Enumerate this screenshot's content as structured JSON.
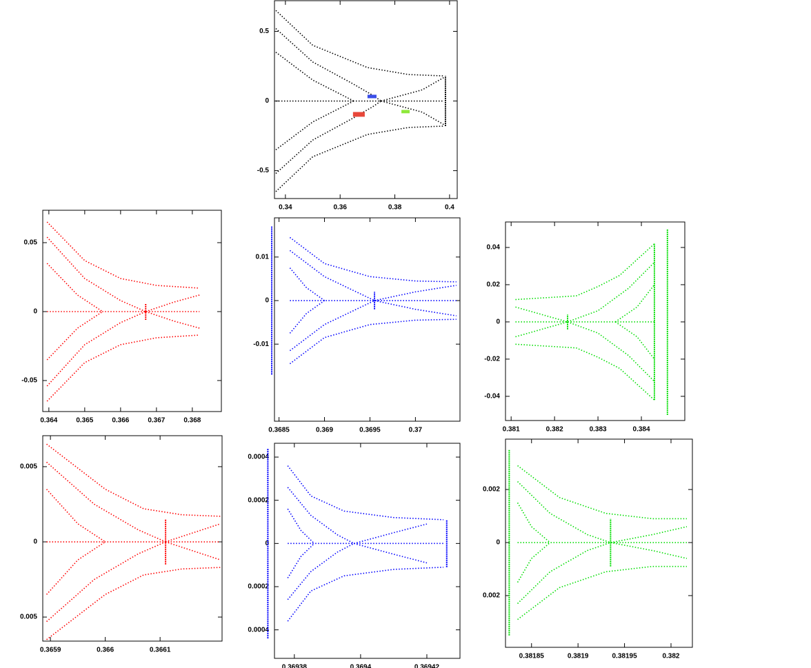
{
  "chart_data": [
    {
      "type": "scatter",
      "color": "#000000",
      "xlim": [
        0.336,
        0.4028
      ],
      "ylim": [
        -0.7,
        0.72
      ],
      "xticks": [
        0.34,
        0.36,
        0.38,
        0.4
      ],
      "yticks": [
        -0.5,
        0,
        0.5
      ],
      "series": [
        {
          "x": [
            0.3365,
            0.35,
            0.37,
            0.385,
            0.398
          ],
          "values": [
            0.65,
            0.4,
            0.24,
            0.19,
            0.18
          ]
        },
        {
          "x": [
            0.3365,
            0.35,
            0.37,
            0.385,
            0.398
          ],
          "values": [
            -0.65,
            -0.4,
            -0.24,
            -0.19,
            -0.18
          ]
        },
        {
          "x": [
            0.3365,
            0.35,
            0.365,
            0.372,
            0.375
          ],
          "values": [
            0.52,
            0.28,
            0.12,
            0.04,
            0
          ]
        },
        {
          "x": [
            0.3365,
            0.35,
            0.365,
            0.372,
            0.375
          ],
          "values": [
            -0.52,
            -0.28,
            -0.12,
            -0.04,
            0
          ]
        },
        {
          "x": [
            0.3365,
            0.35,
            0.36,
            0.365
          ],
          "values": [
            0.35,
            0.15,
            0.05,
            0
          ]
        },
        {
          "x": [
            0.3365,
            0.35,
            0.36,
            0.365
          ],
          "values": [
            -0.35,
            -0.15,
            -0.05,
            0
          ]
        },
        {
          "x": [
            0.375,
            0.39,
            0.398
          ],
          "values": [
            0,
            0.08,
            0.17
          ]
        },
        {
          "x": [
            0.375,
            0.39,
            0.398
          ],
          "values": [
            0,
            -0.08,
            -0.17
          ]
        },
        {
          "x": [
            0.3365,
            0.398
          ],
          "values": [
            0,
            0
          ]
        },
        {
          "x": [
            0.3985,
            0.3985
          ],
          "values": [
            -0.18,
            0.18
          ]
        }
      ],
      "regions": [
        {
          "x": [
            0.3647,
            0.369
          ],
          "y": [
            -0.113,
            -0.079
          ],
          "color": "#e8473a"
        },
        {
          "x": [
            0.37,
            0.3733
          ],
          "y": [
            0.02,
            0.045
          ],
          "color": "#3a4ee8"
        },
        {
          "x": [
            0.3824,
            0.3854
          ],
          "y": [
            -0.088,
            -0.064
          ],
          "color": "#8ee83a"
        }
      ]
    },
    {
      "type": "scatter",
      "color": "#ff0000",
      "xlim": [
        0.36383,
        0.36881
      ],
      "ylim": [
        -0.0725,
        0.0735
      ],
      "xticks": [
        0.364,
        0.365,
        0.366,
        0.367,
        0.368
      ],
      "yticks": [
        -0.05,
        0,
        0.05
      ],
      "series": [
        {
          "x": [
            0.36395,
            0.365,
            0.366,
            0.367,
            0.3682
          ],
          "values": [
            0.065,
            0.037,
            0.024,
            0.019,
            0.017
          ]
        },
        {
          "x": [
            0.36395,
            0.365,
            0.366,
            0.367,
            0.3682
          ],
          "values": [
            -0.065,
            -0.037,
            -0.024,
            -0.019,
            -0.017
          ]
        },
        {
          "x": [
            0.36395,
            0.365,
            0.366,
            0.3667
          ],
          "values": [
            0.054,
            0.024,
            0.008,
            0
          ]
        },
        {
          "x": [
            0.36395,
            0.365,
            0.366,
            0.3667
          ],
          "values": [
            -0.054,
            -0.024,
            -0.008,
            0
          ]
        },
        {
          "x": [
            0.36395,
            0.3648,
            0.3655
          ],
          "values": [
            0.035,
            0.012,
            0
          ]
        },
        {
          "x": [
            0.36395,
            0.3648,
            0.3655
          ],
          "values": [
            -0.035,
            -0.012,
            0
          ]
        },
        {
          "x": [
            0.3667,
            0.3675,
            0.3682
          ],
          "values": [
            0,
            0.007,
            0.012
          ]
        },
        {
          "x": [
            0.3667,
            0.3675,
            0.3682
          ],
          "values": [
            0,
            -0.007,
            -0.012
          ]
        },
        {
          "x": [
            0.36395,
            0.3682
          ],
          "values": [
            0,
            0
          ]
        },
        {
          "x": [
            0.3667,
            0.3667
          ],
          "values": [
            -0.006,
            0.006
          ]
        }
      ]
    },
    {
      "type": "scatter",
      "color": "#0000ff",
      "xlim": [
        0.36845,
        0.37049
      ],
      "ylim": [
        -0.0277,
        0.019
      ],
      "xticks": [
        0.3685,
        0.369,
        0.3695,
        0.37
      ],
      "yticks": [
        -0.01,
        0,
        0.01
      ],
      "series": [
        {
          "x": [
            0.36862,
            0.369,
            0.3695,
            0.37,
            0.37045
          ],
          "values": [
            0.0145,
            0.0085,
            0.0055,
            0.0045,
            0.0043
          ]
        },
        {
          "x": [
            0.36862,
            0.369,
            0.3695,
            0.37,
            0.37045
          ],
          "values": [
            -0.0145,
            -0.0085,
            -0.0055,
            -0.0045,
            -0.0043
          ]
        },
        {
          "x": [
            0.36862,
            0.369,
            0.3694,
            0.36955
          ],
          "values": [
            0.0115,
            0.0055,
            0.0015,
            0
          ]
        },
        {
          "x": [
            0.36862,
            0.369,
            0.3694,
            0.36955
          ],
          "values": [
            -0.0115,
            -0.0055,
            -0.0015,
            0
          ]
        },
        {
          "x": [
            0.36862,
            0.3688,
            0.369
          ],
          "values": [
            0.0075,
            0.003,
            0
          ]
        },
        {
          "x": [
            0.36862,
            0.3688,
            0.369
          ],
          "values": [
            -0.0075,
            -0.003,
            0
          ]
        },
        {
          "x": [
            0.36955,
            0.37,
            0.37045
          ],
          "values": [
            0,
            0.002,
            0.0035
          ]
        },
        {
          "x": [
            0.36955,
            0.37,
            0.37045
          ],
          "values": [
            0,
            -0.002,
            -0.0035
          ]
        },
        {
          "x": [
            0.36862,
            0.37045
          ],
          "values": [
            0,
            0
          ]
        },
        {
          "x": [
            0.36955,
            0.36955
          ],
          "values": [
            -0.002,
            0.002
          ]
        },
        {
          "x": [
            0.36842,
            0.36842
          ],
          "values": [
            -0.017,
            0.017
          ]
        }
      ]
    },
    {
      "type": "scatter",
      "color": "#00dd00",
      "xlim": [
        0.38087,
        0.385
      ],
      "ylim": [
        -0.053,
        0.0537
      ],
      "xticks": [
        0.381,
        0.382,
        0.383,
        0.384
      ],
      "yticks": [
        -0.04,
        -0.02,
        0,
        0.02,
        0.04
      ],
      "series": [
        {
          "x": [
            0.3811,
            0.3825,
            0.383,
            0.3835,
            0.3843
          ],
          "values": [
            0.012,
            0.014,
            0.019,
            0.025,
            0.042
          ]
        },
        {
          "x": [
            0.3811,
            0.3825,
            0.383,
            0.3835,
            0.3843
          ],
          "values": [
            -0.012,
            -0.014,
            -0.019,
            -0.025,
            -0.042
          ]
        },
        {
          "x": [
            0.3823,
            0.383,
            0.3837,
            0.3843
          ],
          "values": [
            0,
            0.006,
            0.018,
            0.032
          ]
        },
        {
          "x": [
            0.3823,
            0.383,
            0.3837,
            0.3843
          ],
          "values": [
            0,
            -0.006,
            -0.018,
            -0.032
          ]
        },
        {
          "x": [
            0.3834,
            0.3839,
            0.3843
          ],
          "values": [
            0,
            0.008,
            0.02
          ]
        },
        {
          "x": [
            0.3834,
            0.3839,
            0.3843
          ],
          "values": [
            0,
            -0.008,
            -0.02
          ]
        },
        {
          "x": [
            0.3811,
            0.3817,
            0.3823
          ],
          "values": [
            0.008,
            0.004,
            0
          ]
        },
        {
          "x": [
            0.3811,
            0.3817,
            0.3823
          ],
          "values": [
            -0.008,
            -0.004,
            0
          ]
        },
        {
          "x": [
            0.3811,
            0.3843
          ],
          "values": [
            0,
            0
          ]
        },
        {
          "x": [
            0.3823,
            0.3823
          ],
          "values": [
            -0.004,
            0.004
          ]
        },
        {
          "x": [
            0.3843,
            0.3843
          ],
          "values": [
            -0.042,
            0.042
          ]
        },
        {
          "x": [
            0.3846,
            0.3846
          ],
          "values": [
            -0.05,
            0.05
          ]
        }
      ]
    },
    {
      "type": "scatter",
      "color": "#ff0000",
      "xlim": [
        0.365886,
        0.366213
      ],
      "ylim": [
        -0.0066,
        0.00706
      ],
      "xticks": [
        0.3659,
        0.366,
        0.3661
      ],
      "yticks": [
        {
          "value": -0.005,
          "label": "0.005"
        },
        0,
        0.005
      ],
      "series": [
        {
          "x": [
            0.365893,
            0.366,
            0.36607,
            0.36614,
            0.36621
          ],
          "values": [
            0.0065,
            0.0035,
            0.0022,
            0.0018,
            0.0017
          ]
        },
        {
          "x": [
            0.365893,
            0.366,
            0.36607,
            0.36614,
            0.36621
          ],
          "values": [
            -0.0065,
            -0.0035,
            -0.0022,
            -0.0018,
            -0.0017
          ]
        },
        {
          "x": [
            0.365893,
            0.36598,
            0.36606,
            0.36611
          ],
          "values": [
            0.0053,
            0.0025,
            0.0008,
            0
          ]
        },
        {
          "x": [
            0.365893,
            0.36598,
            0.36606,
            0.36611
          ],
          "values": [
            -0.0053,
            -0.0025,
            -0.0008,
            0
          ]
        },
        {
          "x": [
            0.365893,
            0.36595,
            0.366
          ],
          "values": [
            0.0035,
            0.0012,
            0
          ]
        },
        {
          "x": [
            0.365893,
            0.36595,
            0.366
          ],
          "values": [
            -0.0035,
            -0.0012,
            0
          ]
        },
        {
          "x": [
            0.36611,
            0.36616,
            0.36621
          ],
          "values": [
            0,
            0.0006,
            0.0012
          ]
        },
        {
          "x": [
            0.36611,
            0.36616,
            0.36621
          ],
          "values": [
            0,
            -0.0006,
            -0.0012
          ]
        },
        {
          "x": [
            0.365893,
            0.36621
          ],
          "values": [
            0,
            0
          ]
        },
        {
          "x": [
            0.36611,
            0.36611
          ],
          "values": [
            -0.0015,
            0.0015
          ]
        }
      ]
    },
    {
      "type": "scatter",
      "color": "#0000ff",
      "xlim": [
        0.369374,
        0.36943
      ],
      "ylim": [
        -0.000532,
        0.000464
      ],
      "xticks": [
        0.36938,
        0.3694,
        0.36942
      ],
      "yticks": [
        {
          "value": -0.0004,
          "label": "0.0004"
        },
        {
          "value": -0.0002,
          "label": "0.0002"
        },
        0,
        0.0002,
        0.0004
      ],
      "series": [
        {
          "x": [
            0.369378,
            0.369385,
            0.369395,
            0.36941,
            0.369425
          ],
          "values": [
            0.00036,
            0.00022,
            0.00015,
            0.00012,
            0.00011
          ]
        },
        {
          "x": [
            0.369378,
            0.369385,
            0.369395,
            0.36941,
            0.369425
          ],
          "values": [
            -0.00036,
            -0.00022,
            -0.00015,
            -0.00012,
            -0.00011
          ]
        },
        {
          "x": [
            0.369378,
            0.369385,
            0.369393,
            0.369398
          ],
          "values": [
            0.00026,
            0.00013,
            4e-05,
            0
          ]
        },
        {
          "x": [
            0.369378,
            0.369385,
            0.369393,
            0.369398
          ],
          "values": [
            -0.00026,
            -0.00013,
            -4e-05,
            0
          ]
        },
        {
          "x": [
            0.369378,
            0.369382,
            0.369386
          ],
          "values": [
            0.00016,
            6e-05,
            0
          ]
        },
        {
          "x": [
            0.369378,
            0.369382,
            0.369386
          ],
          "values": [
            -0.00016,
            -6e-05,
            0
          ]
        },
        {
          "x": [
            0.369398,
            0.36941,
            0.36942
          ],
          "values": [
            0,
            5e-05,
            9e-05
          ]
        },
        {
          "x": [
            0.369398,
            0.36941,
            0.36942
          ],
          "values": [
            0,
            -5e-05,
            -9e-05
          ]
        },
        {
          "x": [
            0.369378,
            0.369425
          ],
          "values": [
            0,
            0
          ]
        },
        {
          "x": [
            0.369372,
            0.369372
          ],
          "values": [
            -0.00044,
            0.00044
          ]
        },
        {
          "x": [
            0.369426,
            0.369426
          ],
          "values": [
            -0.00011,
            0.00011
          ]
        }
      ]
    },
    {
      "type": "scatter",
      "color": "#00dd00",
      "xlim": [
        0.381822,
        0.382023
      ],
      "ylim": [
        -0.00395,
        0.0039
      ],
      "xticks": [
        0.38185,
        0.3819,
        0.38195,
        0.382
      ],
      "yticks": [
        {
          "value": -0.002,
          "label": "0.002"
        },
        0,
        0.002
      ],
      "series": [
        {
          "x": [
            0.381835,
            0.38188,
            0.38193,
            0.38198,
            0.382017
          ],
          "values": [
            0.0029,
            0.0017,
            0.0011,
            0.0009,
            0.0009
          ]
        },
        {
          "x": [
            0.381835,
            0.38188,
            0.38193,
            0.38198,
            0.382017
          ],
          "values": [
            -0.0029,
            -0.0017,
            -0.0011,
            -0.0009,
            -0.0009
          ]
        },
        {
          "x": [
            0.381835,
            0.38187,
            0.38191,
            0.381935
          ],
          "values": [
            0.0023,
            0.0011,
            0.0003,
            0
          ]
        },
        {
          "x": [
            0.381835,
            0.38187,
            0.38191,
            0.381935
          ],
          "values": [
            -0.0023,
            -0.0011,
            -0.0003,
            0
          ]
        },
        {
          "x": [
            0.381835,
            0.38185,
            0.38187
          ],
          "values": [
            0.0015,
            0.0006,
            0
          ]
        },
        {
          "x": [
            0.381835,
            0.38185,
            0.38187
          ],
          "values": [
            -0.0015,
            -0.0006,
            0
          ]
        },
        {
          "x": [
            0.381935,
            0.38198,
            0.382017
          ],
          "values": [
            0,
            0.0003,
            0.0006
          ]
        },
        {
          "x": [
            0.381935,
            0.38198,
            0.382017
          ],
          "values": [
            0,
            -0.0003,
            -0.0006
          ]
        },
        {
          "x": [
            0.381835,
            0.382017
          ],
          "values": [
            0,
            0
          ]
        },
        {
          "x": [
            0.381826,
            0.381826
          ],
          "values": [
            -0.0035,
            0.0035
          ]
        },
        {
          "x": [
            0.381935,
            0.381935
          ],
          "values": [
            -0.0009,
            0.0009
          ]
        }
      ]
    }
  ]
}
